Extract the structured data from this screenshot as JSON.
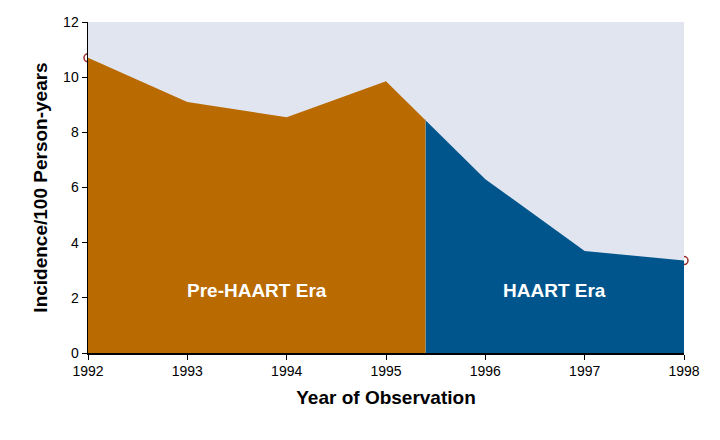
{
  "chart_data": {
    "type": "area",
    "x_label": "Year of Observation",
    "y_label": "Incidence/100 Person-years",
    "x": [
      1992,
      1993,
      1994,
      1995,
      1996,
      1997,
      1998
    ],
    "values": [
      10.7,
      9.1,
      8.55,
      9.85,
      6.3,
      3.7,
      3.35
    ],
    "regions": [
      {
        "label": "Pre-HAART Era",
        "from": 1992,
        "to": 1995.4,
        "color": "#b96a00"
      },
      {
        "label": "HAART Era",
        "from": 1995.4,
        "to": 1998,
        "color": "#00568c"
      }
    ],
    "xlim": [
      1992,
      1998
    ],
    "xticks": [
      1992,
      1993,
      1994,
      1995,
      1996,
      1997,
      1998
    ],
    "ylim": [
      0,
      12
    ],
    "yticks": [
      0,
      2,
      4,
      6,
      8,
      10,
      12
    ],
    "grid": false,
    "marker": "circle"
  }
}
